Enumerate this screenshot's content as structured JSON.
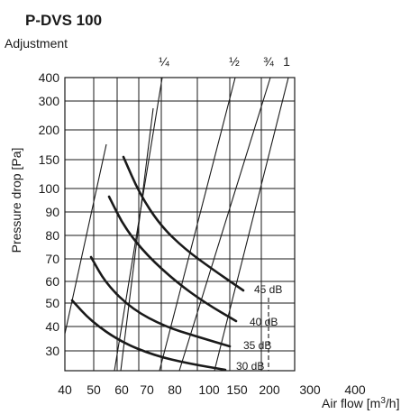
{
  "chart_data": {
    "type": "line",
    "title": "P-DVS 100",
    "subtitle": "Adjustment",
    "xlabel": "Air flow [m³/h]",
    "xlabel_base": "Air flow [m",
    "xlabel_sup": "3",
    "xlabel_tail": "/h]",
    "ylabel": "Pressure drop [Pa]",
    "x_ticks": [
      "40",
      "50",
      "60",
      "70",
      "80",
      "100",
      "150",
      "200",
      "300",
      "400"
    ],
    "y_ticks": [
      "30",
      "40",
      "50",
      "60",
      "70",
      "80",
      "90",
      "100",
      "150",
      "200",
      "300",
      "400"
    ],
    "adjustment_labels": [
      "¼",
      "½",
      "¾",
      "1"
    ],
    "dashed_x_tick": "200",
    "noise_curves": [
      {
        "name": "45 dB",
        "points": [
          [
            15.1,
            152
          ],
          [
            15.4,
            120
          ],
          [
            15.8,
            95
          ],
          [
            16.3,
            76
          ],
          [
            16.9,
            64
          ],
          [
            17.5,
            56
          ]
        ]
      },
      {
        "name": "40 dB",
        "points": [
          [
            15.0,
            96
          ],
          [
            15.3,
            75
          ],
          [
            15.8,
            60
          ],
          [
            16.4,
            50
          ],
          [
            17.0,
            45
          ],
          [
            17.3,
            42
          ]
        ]
      },
      {
        "name": "35 dB",
        "points": [
          [
            14.9,
            70
          ],
          [
            15.2,
            56
          ],
          [
            15.7,
            46
          ],
          [
            16.3,
            39
          ],
          [
            16.8,
            35
          ],
          [
            17.3,
            33
          ]
        ]
      },
      {
        "name": "30 dB",
        "points": [
          [
            14.7,
            51
          ],
          [
            15.1,
            42
          ],
          [
            15.6,
            35
          ],
          [
            16.2,
            30
          ],
          [
            16.7,
            27
          ],
          [
            17.2,
            26
          ]
        ]
      }
    ]
  }
}
